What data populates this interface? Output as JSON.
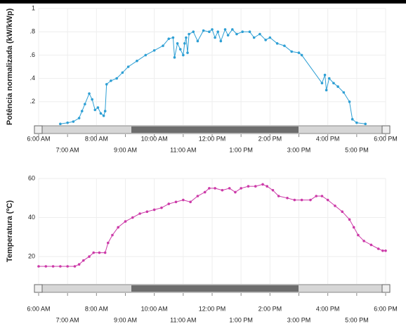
{
  "chart_data": [
    {
      "type": "line",
      "ylabel": "Potência normalizada (kW/kWp)",
      "x": [
        6.75,
        7.0,
        7.2,
        7.4,
        7.5,
        7.6,
        7.75,
        7.85,
        7.95,
        8.05,
        8.15,
        8.25,
        8.3,
        8.35,
        8.5,
        8.7,
        8.9,
        9.1,
        9.4,
        9.7,
        10.0,
        10.3,
        10.5,
        10.65,
        10.7,
        10.8,
        10.9,
        11.0,
        11.05,
        11.1,
        11.15,
        11.2,
        11.35,
        11.5,
        11.7,
        11.9,
        12.0,
        12.1,
        12.2,
        12.3,
        12.45,
        12.55,
        12.7,
        12.85,
        13.05,
        13.3,
        13.45,
        13.65,
        13.85,
        14.0,
        14.25,
        14.5,
        14.75,
        15.0,
        15.1,
        15.8,
        15.9,
        15.95,
        16.05,
        16.2,
        16.35,
        16.55,
        16.75,
        16.85,
        17.0,
        17.3
      ],
      "series": [
        {
          "name": "Potência",
          "color": "#2e9fd4",
          "values": [
            0.01,
            0.02,
            0.03,
            0.06,
            0.12,
            0.18,
            0.27,
            0.22,
            0.13,
            0.15,
            0.1,
            0.08,
            0.12,
            0.35,
            0.38,
            0.4,
            0.45,
            0.5,
            0.55,
            0.6,
            0.64,
            0.68,
            0.74,
            0.75,
            0.58,
            0.7,
            0.65,
            0.6,
            0.7,
            0.75,
            0.62,
            0.78,
            0.8,
            0.72,
            0.81,
            0.8,
            0.82,
            0.75,
            0.8,
            0.72,
            0.82,
            0.77,
            0.82,
            0.78,
            0.8,
            0.8,
            0.75,
            0.78,
            0.73,
            0.75,
            0.7,
            0.68,
            0.63,
            0.62,
            0.6,
            0.36,
            0.43,
            0.3,
            0.4,
            0.36,
            0.33,
            0.28,
            0.2,
            0.05,
            0.02,
            0.01
          ]
        }
      ],
      "xlim": [
        6,
        18
      ],
      "xticks": [
        {
          "value": 6,
          "label": "6:00 AM"
        },
        {
          "value": 7,
          "label": "7:00 AM"
        },
        {
          "value": 8,
          "label": "8:00 AM"
        },
        {
          "value": 9,
          "label": "9:00 AM"
        },
        {
          "value": 10,
          "label": "10:00 AM"
        },
        {
          "value": 11,
          "label": "11:00 AM"
        },
        {
          "value": 12,
          "label": "12:00 PM"
        },
        {
          "value": 13,
          "label": "1:00 PM"
        },
        {
          "value": 14,
          "label": "2:00 PM"
        },
        {
          "value": 15,
          "label": "3:00 PM"
        },
        {
          "value": 16,
          "label": "4:00 PM"
        },
        {
          "value": 17,
          "label": "5:00 PM"
        },
        {
          "value": 18,
          "label": "6:00 PM"
        }
      ],
      "ylim": [
        0,
        1
      ],
      "yticks": [
        {
          "value": 0.2,
          "label": ".2"
        },
        {
          "value": 0.4,
          "label": ".4"
        },
        {
          "value": 0.6,
          "label": ".6"
        },
        {
          "value": 0.8,
          "label": ".8"
        },
        1
      ],
      "grid": true
    },
    {
      "type": "line",
      "ylabel": "Temperatura (ºC)",
      "x": [
        6.0,
        6.25,
        6.5,
        6.75,
        7.0,
        7.25,
        7.4,
        7.55,
        7.75,
        7.9,
        8.1,
        8.3,
        8.4,
        8.55,
        8.75,
        9.0,
        9.25,
        9.5,
        9.75,
        10.0,
        10.25,
        10.5,
        10.75,
        11.0,
        11.25,
        11.5,
        11.75,
        11.9,
        12.1,
        12.35,
        12.6,
        12.8,
        13.0,
        13.25,
        13.5,
        13.75,
        13.9,
        14.1,
        14.3,
        14.6,
        14.85,
        15.1,
        15.4,
        15.6,
        15.8,
        16.0,
        16.25,
        16.5,
        16.75,
        16.9,
        17.05,
        17.25,
        17.5,
        17.75,
        17.9,
        18.0
      ],
      "series": [
        {
          "name": "Temperatura",
          "color": "#cc3aa8",
          "values": [
            15,
            15,
            15,
            15,
            15,
            15,
            16,
            18,
            20,
            22,
            22,
            22,
            27,
            31,
            35,
            38,
            40,
            42,
            43,
            44,
            45,
            47,
            48,
            49,
            48,
            51,
            53,
            55,
            55,
            54,
            55,
            53,
            55,
            56,
            56,
            57,
            56,
            54,
            51,
            50,
            49,
            49,
            49,
            51,
            51,
            49,
            46,
            43,
            39,
            35,
            31,
            28,
            26,
            24,
            23,
            23
          ]
        }
      ],
      "xlim": [
        6,
        18
      ],
      "xticks": [
        {
          "value": 6,
          "label": "6:00 AM"
        },
        {
          "value": 7,
          "label": "7:00 AM"
        },
        {
          "value": 8,
          "label": "8:00 AM"
        },
        {
          "value": 9,
          "label": "9:00 AM"
        },
        {
          "value": 10,
          "label": "10:00 AM"
        },
        {
          "value": 11,
          "label": "11:00 AM"
        },
        {
          "value": 12,
          "label": "12:00 PM"
        },
        {
          "value": 13,
          "label": "1:00 PM"
        },
        {
          "value": 14,
          "label": "2:00 PM"
        },
        {
          "value": 15,
          "label": "3:00 PM"
        },
        {
          "value": 16,
          "label": "4:00 PM"
        },
        {
          "value": 17,
          "label": "5:00 PM"
        },
        {
          "value": 18,
          "label": "6:00 PM"
        }
      ],
      "ylim": [
        6,
        60
      ],
      "yticks": [
        20,
        40,
        60
      ],
      "grid": true
    }
  ]
}
